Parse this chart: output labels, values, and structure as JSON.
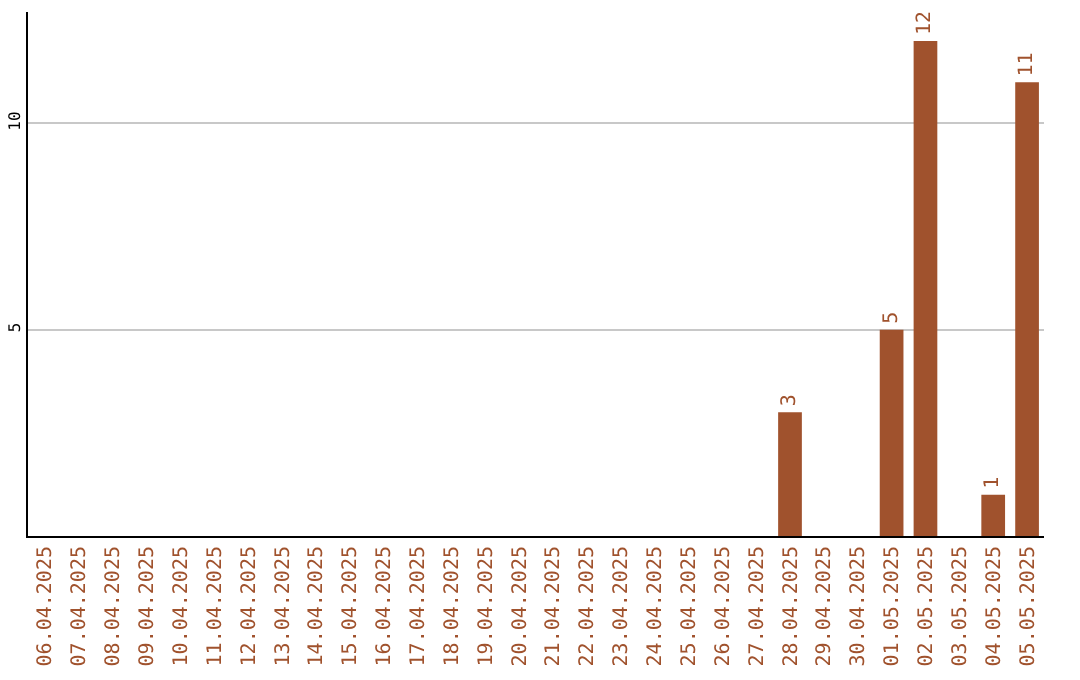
{
  "chart_data": {
    "type": "bar",
    "categories": [
      "06.04.2025",
      "07.04.2025",
      "08.04.2025",
      "09.04.2025",
      "10.04.2025",
      "11.04.2025",
      "12.04.2025",
      "13.04.2025",
      "14.04.2025",
      "15.04.2025",
      "16.04.2025",
      "17.04.2025",
      "18.04.2025",
      "19.04.2025",
      "20.04.2025",
      "21.04.2025",
      "22.04.2025",
      "23.04.2025",
      "24.04.2025",
      "25.04.2025",
      "26.04.2025",
      "27.04.2025",
      "28.04.2025",
      "29.04.2025",
      "30.04.2025",
      "01.05.2025",
      "02.05.2025",
      "03.05.2025",
      "04.05.2025",
      "05.05.2025"
    ],
    "values": [
      0,
      0,
      0,
      0,
      0,
      0,
      0,
      0,
      0,
      0,
      0,
      0,
      0,
      0,
      0,
      0,
      0,
      0,
      0,
      0,
      0,
      0,
      3,
      0,
      0,
      5,
      12,
      0,
      1,
      11
    ],
    "value_labels": [
      null,
      null,
      null,
      null,
      null,
      null,
      null,
      null,
      null,
      null,
      null,
      null,
      null,
      null,
      null,
      null,
      null,
      null,
      null,
      null,
      null,
      null,
      "3",
      null,
      null,
      "5",
      "12",
      null,
      "1",
      "11"
    ],
    "color": "#a0522d",
    "ylim": [
      0,
      12.7
    ],
    "yticks": [
      5,
      10
    ],
    "grid": "y"
  }
}
